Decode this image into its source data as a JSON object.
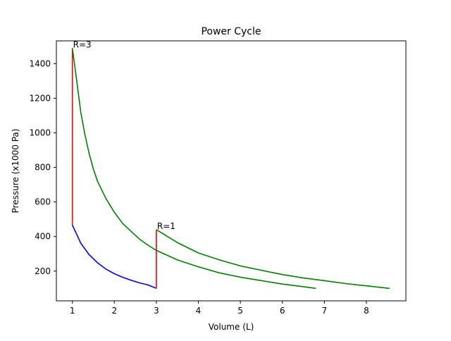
{
  "chart_data": {
    "type": "line",
    "title": "Power Cycle",
    "xlabel": "Volume (L)",
    "ylabel": "Pressure (x1000 Pa)",
    "xlim": [
      0.62,
      8.94
    ],
    "ylim": [
      28,
      1532
    ],
    "xticks": [
      1,
      2,
      3,
      4,
      5,
      6,
      7,
      8
    ],
    "yticks": [
      200,
      400,
      600,
      800,
      1000,
      1200,
      1400
    ],
    "grid": false,
    "legend": "none",
    "series": [
      {
        "color": "#0000ff",
        "x": [
          1.0,
          1.2,
          1.4,
          1.6,
          1.8,
          2.0,
          2.2,
          2.4,
          2.6,
          2.8,
          3.0
        ],
        "y": [
          466,
          362,
          295,
          248,
          212,
          185,
          164,
          147,
          132,
          120,
          100
        ]
      },
      {
        "color": "#ff0000",
        "x": [
          1.0,
          1.0
        ],
        "y": [
          466,
          1490
        ]
      },
      {
        "color": "#ff0000",
        "x": [
          3.0,
          3.0
        ],
        "y": [
          100,
          440
        ]
      },
      {
        "color": "#008000",
        "x": [
          1.0,
          1.1,
          1.2,
          1.3,
          1.4,
          1.5,
          1.6,
          1.8,
          2.0,
          2.2,
          2.4,
          2.6,
          2.8,
          3.0,
          3.5,
          4.0,
          4.5,
          5.0,
          5.5,
          6.0,
          6.5,
          6.8
        ],
        "y": [
          1490,
          1310,
          1120,
          990,
          880,
          790,
          720,
          620,
          540,
          475,
          430,
          385,
          350,
          320,
          265,
          225,
          190,
          165,
          145,
          125,
          110,
          100
        ]
      },
      {
        "color": "#008000",
        "x": [
          3.0,
          3.5,
          4.0,
          4.5,
          5.0,
          5.5,
          6.0,
          6.5,
          7.0,
          7.5,
          8.0,
          8.55
        ],
        "y": [
          440,
          365,
          305,
          265,
          230,
          205,
          180,
          160,
          145,
          128,
          115,
          100
        ]
      }
    ],
    "annotations": [
      {
        "text": "R=3",
        "x": 1.0,
        "y": 1490
      },
      {
        "text": "R=1",
        "x": 3.0,
        "y": 440
      }
    ]
  }
}
